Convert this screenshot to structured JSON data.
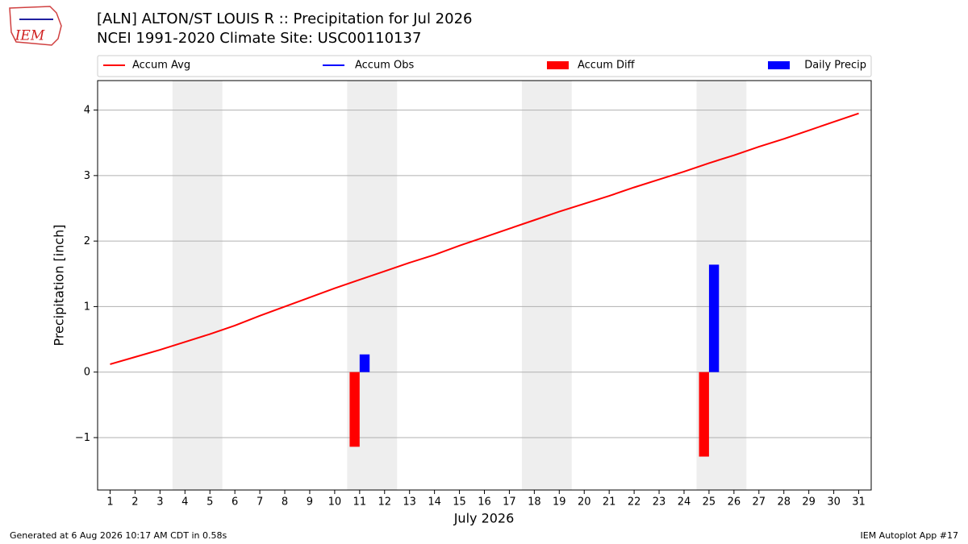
{
  "logo": "IEM",
  "footer": {
    "left": "Generated at 6 Aug 2026 10:17 AM CDT in 0.58s",
    "right": "IEM Autoplot App #17"
  },
  "chart_data": {
    "type": "combo",
    "title": [
      "[ALN] ALTON/ST LOUIS R :: Precipitation for Jul 2026",
      "NCEI 1991-2020 Climate Site: USC00110137"
    ],
    "y_label": "Precipitation [inch]",
    "x_label": "July 2026",
    "x": [
      1,
      2,
      3,
      4,
      5,
      6,
      7,
      8,
      9,
      10,
      11,
      12,
      13,
      14,
      15,
      16,
      17,
      18,
      19,
      20,
      21,
      22,
      23,
      24,
      25,
      26,
      27,
      28,
      29,
      30,
      31
    ],
    "xlim": [
      0.5,
      31.5
    ],
    "xticks": [
      1,
      2,
      3,
      4,
      5,
      6,
      7,
      8,
      9,
      10,
      11,
      12,
      13,
      14,
      15,
      16,
      17,
      18,
      19,
      20,
      21,
      22,
      23,
      24,
      25,
      26,
      27,
      28,
      29,
      30,
      31
    ],
    "ylim": [
      -1.8,
      4.45
    ],
    "yticks": [
      -1,
      0,
      1,
      2,
      3,
      4
    ],
    "y_minus_sign": "−",
    "grid": true,
    "shaded_spans": [
      [
        3.5,
        5.5
      ],
      [
        10.5,
        12.5
      ],
      [
        17.5,
        19.5
      ],
      [
        24.5,
        26.5
      ]
    ],
    "shade_color": "#eeeeee",
    "series": [
      {
        "name": "Accum Avg",
        "kind": "line",
        "color": "#ff0000",
        "values": [
          0.12,
          0.23,
          0.34,
          0.46,
          0.58,
          0.71,
          0.86,
          1.0,
          1.14,
          1.28,
          1.41,
          1.54,
          1.67,
          1.79,
          1.93,
          2.06,
          2.19,
          2.32,
          2.45,
          2.57,
          2.69,
          2.82,
          2.94,
          3.06,
          3.19,
          3.31,
          3.44,
          3.56,
          3.69,
          3.82,
          3.95
        ]
      },
      {
        "name": "Accum Obs",
        "kind": "line",
        "color": "#0000ff",
        "values": [
          null,
          null,
          null,
          null,
          null,
          null,
          null,
          null,
          null,
          null,
          null,
          null,
          null,
          null,
          null,
          null,
          null,
          null,
          null,
          null,
          null,
          null,
          null,
          null,
          null,
          null,
          null,
          null,
          null,
          null,
          null
        ]
      },
      {
        "name": "Accum Diff",
        "kind": "bar",
        "side": "left",
        "color": "#ff0000",
        "values": [
          null,
          null,
          null,
          null,
          null,
          null,
          null,
          null,
          null,
          null,
          -1.14,
          null,
          null,
          null,
          null,
          null,
          null,
          null,
          null,
          null,
          null,
          null,
          null,
          null,
          -1.29,
          null,
          null,
          null,
          null,
          null,
          null
        ]
      },
      {
        "name": "Daily Precip",
        "kind": "bar",
        "side": "right",
        "color": "#0000ff",
        "values": [
          null,
          null,
          null,
          null,
          null,
          null,
          null,
          null,
          null,
          null,
          0.27,
          null,
          null,
          null,
          null,
          null,
          null,
          null,
          null,
          null,
          null,
          null,
          null,
          null,
          1.64,
          null,
          null,
          null,
          null,
          null,
          null
        ]
      }
    ]
  }
}
